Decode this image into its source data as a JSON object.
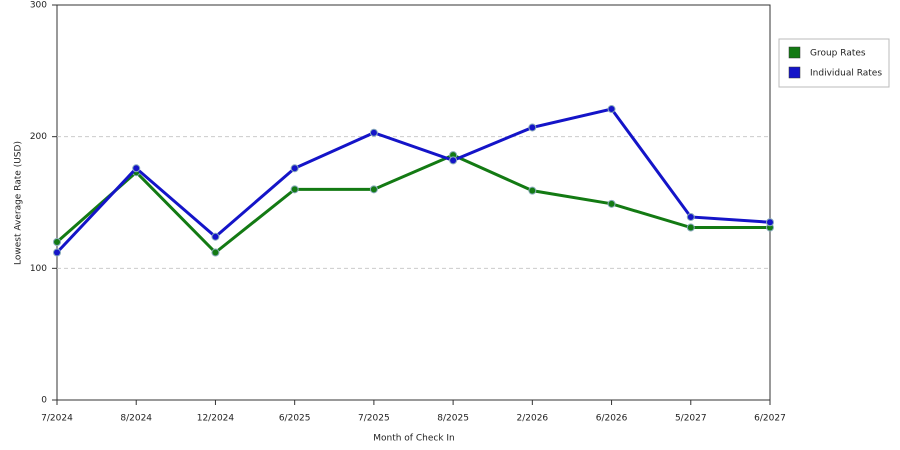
{
  "chart_data": {
    "type": "line",
    "categories": [
      "7/2024",
      "8/2024",
      "12/2024",
      "6/2025",
      "7/2025",
      "8/2025",
      "2/2026",
      "6/2026",
      "5/2027",
      "6/2027"
    ],
    "series": [
      {
        "name": "Group Rates",
        "color": "#137a13",
        "values": [
          120,
          173,
          112,
          160,
          160,
          186,
          159,
          149,
          131,
          131
        ]
      },
      {
        "name": "Individual Rates",
        "color": "#1414c8",
        "values": [
          112,
          176,
          124,
          176,
          203,
          182,
          207,
          221,
          139,
          135
        ]
      }
    ],
    "x_label": "Month of Check In",
    "y_label": "Lowest Average Rate (USD)",
    "ylim": [
      0,
      300
    ],
    "yticks": [
      0,
      100,
      200,
      300
    ],
    "grid": true,
    "legend": "right"
  }
}
